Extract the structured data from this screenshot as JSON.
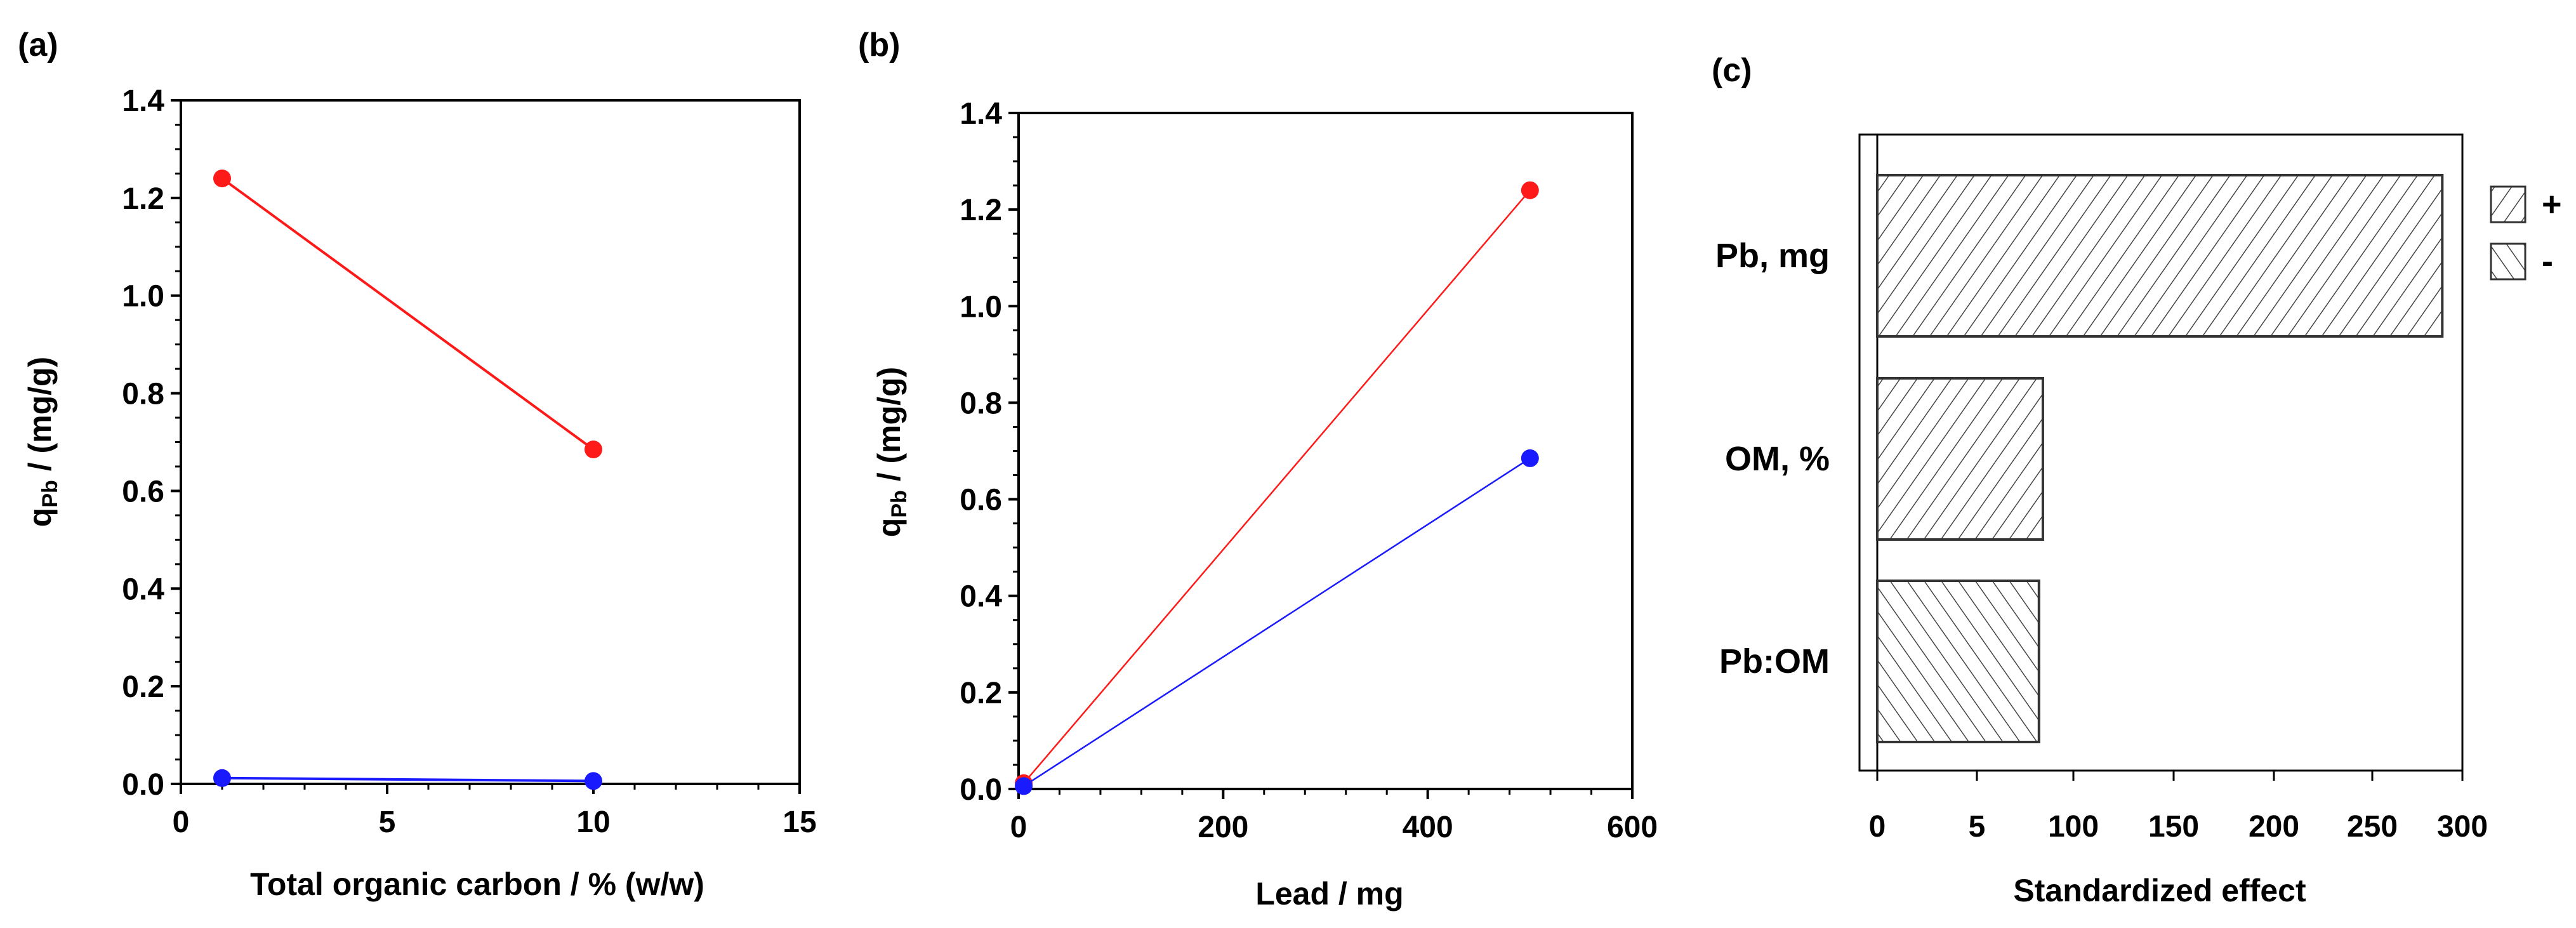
{
  "colors": {
    "red": "#ff1a1a",
    "blue": "#1a1aff",
    "axis": "#000000",
    "bar_outline": "#333333"
  },
  "chart_data": [
    {
      "panel_label": "(a)",
      "type": "line",
      "xlabel": "Total organic carbon / % (w/w)",
      "ylabel_main": "q",
      "ylabel_sub": "Pb",
      "ylabel_rest": " / (mg/g)",
      "xlim": [
        0,
        15
      ],
      "ylim": [
        0,
        1.4
      ],
      "x_ticks": [
        0,
        5,
        10,
        15
      ],
      "x_tick_labels": [
        "0",
        "5",
        "10",
        "15"
      ],
      "y_ticks": [
        0,
        0.2,
        0.4,
        0.6,
        0.8,
        1.0,
        1.2,
        1.4
      ],
      "y_tick_labels": [
        "0.0",
        "0.2",
        "0.4",
        "0.6",
        "0.8",
        "1.0",
        "1.2",
        "1.4"
      ],
      "series": [
        {
          "color": "red",
          "x": [
            1,
            10
          ],
          "y": [
            1.24,
            0.685
          ]
        },
        {
          "color": "blue",
          "x": [
            1,
            10
          ],
          "y": [
            0.012,
            0.006
          ]
        }
      ]
    },
    {
      "panel_label": "(b)",
      "type": "line",
      "xlabel": "Lead / mg",
      "ylabel_main": "q",
      "ylabel_sub": "Pb",
      "ylabel_rest": " / (mg/g)",
      "xlim": [
        0,
        600
      ],
      "ylim": [
        0,
        1.4
      ],
      "x_ticks": [
        0,
        200,
        400,
        600
      ],
      "x_tick_labels": [
        "0",
        "200",
        "400",
        "600"
      ],
      "y_ticks": [
        0,
        0.2,
        0.4,
        0.6,
        0.8,
        1.0,
        1.2,
        1.4
      ],
      "y_tick_labels": [
        "0.0",
        "0.2",
        "0.4",
        "0.6",
        "0.8",
        "1.0",
        "1.2",
        "1.4"
      ],
      "series": [
        {
          "color": "red",
          "x": [
            5,
            500
          ],
          "y": [
            0.012,
            1.24
          ]
        },
        {
          "color": "blue",
          "x": [
            5,
            500
          ],
          "y": [
            0.006,
            0.685
          ]
        }
      ]
    },
    {
      "panel_label": "(c)",
      "type": "bar",
      "orientation": "horizontal",
      "xlabel": "Standardized effect",
      "categories": [
        "Pb, mg",
        "OM, %",
        "Pb:OM"
      ],
      "values": [
        290,
        85,
        83
      ],
      "signs": [
        "+",
        "+",
        "-"
      ],
      "x_ticks": [
        0,
        5,
        100,
        150,
        200,
        250,
        300
      ],
      "x_tick_labels": [
        "0",
        "5",
        "100",
        "150",
        "200",
        "250",
        "300"
      ],
      "legend": [
        {
          "label": "+",
          "pattern": "forward"
        },
        {
          "label": "-",
          "pattern": "backward"
        }
      ],
      "legend_position": "top-right"
    }
  ]
}
